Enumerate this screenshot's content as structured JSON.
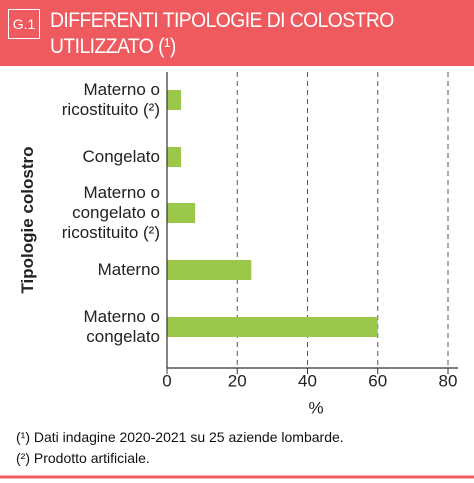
{
  "badge": "G.1",
  "chart_data": {
    "type": "hbar",
    "title": "DIFFERENTI TIPOLOGIE DI COLOSTRO UTILIZZATO (¹)",
    "categories": [
      "Materno o\nricostituito (²)",
      "Congelato",
      "Materno o\ncongelato o\nricostituito (²)",
      "Materno",
      "Materno o\ncongelato"
    ],
    "values": [
      4,
      4,
      8,
      24,
      60
    ],
    "color": "#9cc84a",
    "xlim": [
      0,
      80
    ],
    "xticks": [
      0,
      20,
      40,
      60,
      80
    ],
    "x_label": "%",
    "y_label": "Tipologie colostro",
    "grid": true
  },
  "notes": [
    "(¹) Dati indagine 2020-2021 su 25 aziende lombarde.",
    "(²) Prodotto artificiale."
  ]
}
